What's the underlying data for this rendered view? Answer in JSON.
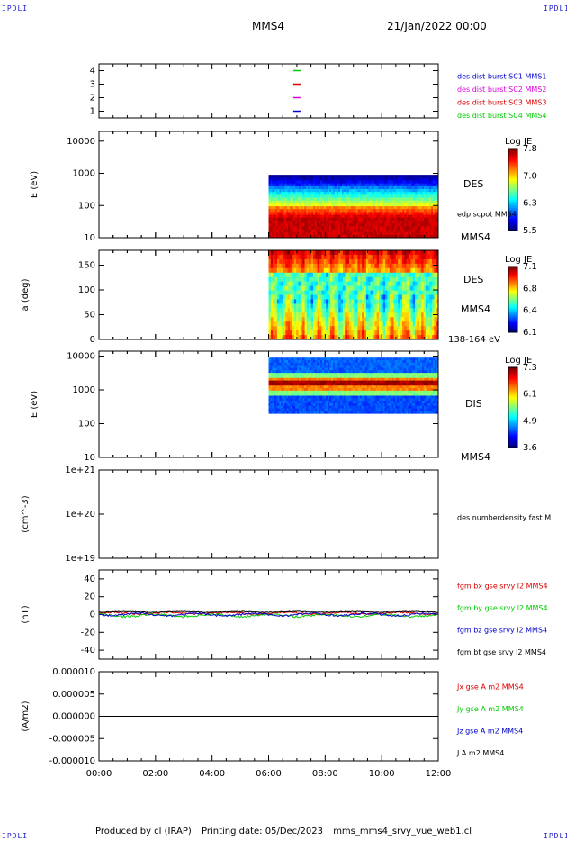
{
  "corners": {
    "top_left": "IPDLI",
    "top_right": "IPDLI",
    "bottom_left": "IPDLI",
    "bottom_right": "IPDLI"
  },
  "header": {
    "title": "MMS4",
    "datetime": "21/Jan/2022 00:00"
  },
  "footer": {
    "produced": "Produced by cl (IRAP)",
    "printing": "Printing date: 05/Dec/2023",
    "file": "mms_mms4_srvy_vue_web1.cl"
  },
  "colors": {
    "red": "#dd0000",
    "green": "#00cc00",
    "blue": "#0000cc",
    "magenta": "#dd00dd",
    "black": "#000000"
  },
  "time_axis": {
    "ticks": [
      "00:00",
      "02:00",
      "04:00",
      "06:00",
      "08:00",
      "10:00",
      "12:00"
    ],
    "range_hours": [
      0,
      12
    ],
    "data_start_hour": 6
  },
  "chart_data": [
    {
      "type": "scatter",
      "id": "availability",
      "yticks": [
        "1",
        "2",
        "3",
        "4"
      ],
      "ylim": [
        0.5,
        4.5
      ],
      "markers": [
        {
          "y": 4,
          "x": 7.0,
          "color": "#00cc00"
        },
        {
          "y": 3,
          "x": 7.0,
          "color": "#dd0000"
        },
        {
          "y": 2,
          "x": 7.0,
          "color": "#dd00dd"
        },
        {
          "y": 1,
          "x": 7.0,
          "color": "#0000cc"
        }
      ],
      "legend": [
        {
          "label": "des dist burst SC1 MMS1",
          "color": "#0000cc"
        },
        {
          "label": "des dist burst SC2 MMS2",
          "color": "#dd00dd"
        },
        {
          "label": "des dist burst SC3 MMS3",
          "color": "#dd0000"
        },
        {
          "label": "des dist burst SC4 MMS4",
          "color": "#00cc00"
        }
      ]
    },
    {
      "type": "heatmap",
      "id": "des-energy",
      "ylabel": "E (eV)",
      "yticks": [
        "10",
        "100",
        "1000",
        "10000"
      ],
      "ylim_log": [
        10,
        20000
      ],
      "data_yrange": [
        10,
        900
      ],
      "colorbar": {
        "title": "Log JE",
        "ticks": [
          "7.8",
          "7.0",
          "6.3",
          "5.5"
        ]
      },
      "right_labels": [
        "DES",
        "edp scpot MMS4",
        "MMS4"
      ]
    },
    {
      "type": "heatmap",
      "id": "des-pitch",
      "ylabel": "a (deg)",
      "yticks": [
        "0",
        "50",
        "100",
        "150"
      ],
      "ylim": [
        0,
        180
      ],
      "colorbar": {
        "title": "Log JE",
        "ticks": [
          "7.1",
          "6.8",
          "6.4",
          "6.1"
        ]
      },
      "right_labels": [
        "DES",
        "MMS4",
        "138-164 eV"
      ]
    },
    {
      "type": "heatmap",
      "id": "dis-energy",
      "ylabel": "E (eV)",
      "yticks": [
        "10",
        "100",
        "1000",
        "10000"
      ],
      "ylim_log": [
        10,
        14000
      ],
      "data_yrange": [
        200,
        9000
      ],
      "colorbar": {
        "title": "Log JE",
        "ticks": [
          "7.3",
          "6.1",
          "4.9",
          "3.6"
        ]
      },
      "right_labels": [
        "DIS",
        "MMS4"
      ]
    },
    {
      "type": "line",
      "id": "density",
      "ylabel": "(cm^-3)",
      "yticks": [
        "1e+19",
        "1e+20",
        "1e+21"
      ],
      "series": [],
      "legend": [
        {
          "label": "des numberdensity fast M",
          "color": "#000000"
        }
      ]
    },
    {
      "type": "line",
      "id": "magnetic-field",
      "ylabel": "(nT)",
      "yticks": [
        "-40",
        "-20",
        "0",
        "20",
        "40"
      ],
      "ylim": [
        -50,
        50
      ],
      "series": [
        {
          "name": "fgm bx gse srvy l2 MMS4",
          "color": "#dd0000",
          "base": 1.5,
          "amp": 2.0
        },
        {
          "name": "fgm by gse srvy l2 MMS4",
          "color": "#00cc00",
          "base": -1.0,
          "amp": 2.5
        },
        {
          "name": "fgm bz gse srvy l2 MMS4",
          "color": "#0000cc",
          "base": 0.0,
          "amp": 2.5
        },
        {
          "name": "fgm bt gse srvy l2 MMS4",
          "color": "#000000",
          "base": 3.0,
          "amp": 0.8
        }
      ]
    },
    {
      "type": "line",
      "id": "current-density",
      "ylabel": "(A/m2)",
      "yticks": [
        "-0.000010",
        "-0.000005",
        "0.000000",
        "0.000005",
        "0.000010"
      ],
      "ylim": [
        -1e-05,
        1e-05
      ],
      "series": [
        {
          "name": "Jx gse A m2 MMS4",
          "color": "#dd0000"
        },
        {
          "name": "Jy gse A m2 MMS4",
          "color": "#00cc00"
        },
        {
          "name": "Jz gse A m2 MMS4",
          "color": "#0000cc"
        },
        {
          "name": "J A m2 MMS4",
          "color": "#000000"
        }
      ]
    }
  ]
}
